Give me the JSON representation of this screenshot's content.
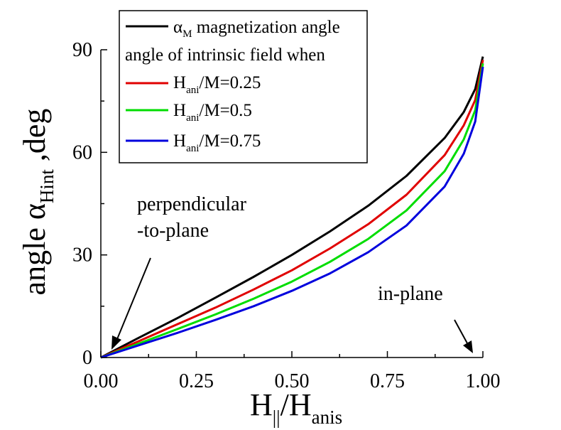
{
  "chart_data": {
    "type": "line",
    "xlabel": {
      "main": "H",
      "sub1": "||",
      "mid": "/H",
      "sub2": "anis"
    },
    "ylabel": {
      "main": "angle α",
      "sub": "Hint",
      "tail": " ,deg"
    },
    "xlim": [
      0,
      1
    ],
    "ylim": [
      0,
      90
    ],
    "xticks": [
      0,
      0.25,
      0.5,
      0.75,
      1.0
    ],
    "xtick_labels": [
      "0.00",
      "0.25",
      "0.50",
      "0.75",
      "1.00"
    ],
    "yticks": [
      0,
      30,
      60,
      90
    ],
    "ytick_labels": [
      "0",
      "30",
      "60",
      "90"
    ],
    "grid": false,
    "legend": {
      "placement": "top-left",
      "header": "angle of intrinsic field when",
      "entries": [
        {
          "parts": [
            "α",
            "M",
            " magnetization angle"
          ]
        },
        {
          "parts": [
            "H",
            "ani",
            "/M=0.25"
          ]
        },
        {
          "parts": [
            "H",
            "ani",
            "/M=0.5"
          ]
        },
        {
          "parts": [
            "H",
            "ani",
            "/M=0.75"
          ]
        }
      ]
    },
    "annotations": [
      {
        "lines": [
          "perpendicular",
          "-to-plane"
        ]
      },
      {
        "lines": [
          "in-plane"
        ]
      }
    ],
    "series": [
      {
        "color": "#000000",
        "x": [
          0,
          0.1,
          0.2,
          0.3,
          0.4,
          0.5,
          0.6,
          0.7,
          0.8,
          0.9,
          0.95,
          0.98,
          1.0
        ],
        "y": [
          0,
          5.8,
          11.5,
          17.5,
          23.6,
          30.0,
          36.9,
          44.4,
          53.1,
          64.2,
          71.8,
          78.5,
          88
        ]
      },
      {
        "color": "#e00000",
        "x": [
          0,
          0.1,
          0.2,
          0.3,
          0.4,
          0.5,
          0.6,
          0.7,
          0.8,
          0.9,
          0.95,
          0.98,
          1.0
        ],
        "y": [
          0,
          4.8,
          9.7,
          14.6,
          19.9,
          25.5,
          31.9,
          39.0,
          47.6,
          59.2,
          67.9,
          75.3,
          87
        ]
      },
      {
        "color": "#00dd00",
        "x": [
          0,
          0.1,
          0.2,
          0.3,
          0.4,
          0.5,
          0.6,
          0.7,
          0.8,
          0.9,
          0.95,
          0.98,
          1.0
        ],
        "y": [
          0,
          4.1,
          8.3,
          12.6,
          17.2,
          22.2,
          28.0,
          34.7,
          43.0,
          54.5,
          63.8,
          72.3,
          86
        ]
      },
      {
        "color": "#0000dd",
        "x": [
          0,
          0.1,
          0.2,
          0.3,
          0.4,
          0.5,
          0.6,
          0.7,
          0.8,
          0.9,
          0.95,
          0.98,
          1.0
        ],
        "y": [
          0,
          3.6,
          7.2,
          11.0,
          15.0,
          19.5,
          24.6,
          30.8,
          38.6,
          50.0,
          59.6,
          69.0,
          85
        ]
      }
    ]
  }
}
